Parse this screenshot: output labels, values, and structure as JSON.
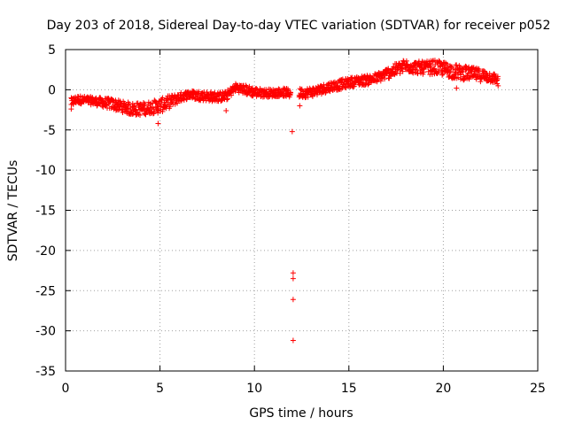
{
  "chart_data": {
    "type": "scatter",
    "title": "Day 203 of 2018, Sidereal Day-to-day VTEC variation (SDTVAR) for receiver p052",
    "xlabel": "GPS time / hours",
    "ylabel": "SDTVAR / TECUs",
    "xlim": [
      0,
      25
    ],
    "ylim": [
      -35,
      5
    ],
    "xticks": [
      0,
      5,
      10,
      15,
      20,
      25
    ],
    "yticks": [
      5,
      0,
      -5,
      -10,
      -15,
      -20,
      -25,
      -30,
      -35
    ],
    "grid": true,
    "marker": "+",
    "color": "#ff0000",
    "series": [
      {
        "name": "SDTVAR",
        "trend_x": [
          0.3,
          0.6,
          1.0,
          1.5,
          2.0,
          2.5,
          3.0,
          3.5,
          4.0,
          4.5,
          5.0,
          5.5,
          6.0,
          6.5,
          7.0,
          7.5,
          8.0,
          8.5,
          9.0,
          9.5,
          10.0,
          10.5,
          11.0,
          11.5,
          12.0,
          12.5,
          13.0,
          13.5,
          14.0,
          14.5,
          15.0,
          15.5,
          16.0,
          16.5,
          17.0,
          17.5,
          18.0,
          18.5,
          19.0,
          19.5,
          20.0,
          20.5,
          21.0,
          21.5,
          22.0,
          22.5,
          22.9
        ],
        "trend_y": [
          -1.6,
          -1.2,
          -1.3,
          -1.4,
          -1.6,
          -1.8,
          -2.1,
          -2.4,
          -2.4,
          -2.2,
          -2.0,
          -1.5,
          -1.0,
          -0.6,
          -0.7,
          -0.8,
          -0.9,
          -0.8,
          0.3,
          0.0,
          -0.3,
          -0.4,
          -0.4,
          -0.3,
          -0.5,
          -0.4,
          -0.3,
          0.0,
          0.4,
          0.6,
          0.9,
          1.1,
          1.2,
          1.5,
          2.0,
          2.5,
          3.0,
          2.8,
          2.7,
          2.8,
          2.6,
          2.3,
          2.1,
          2.0,
          1.8,
          1.6,
          1.2
        ],
        "spread_y": [
          0.6,
          0.5,
          0.5,
          0.5,
          0.6,
          0.7,
          0.7,
          0.8,
          0.8,
          0.8,
          0.9,
          0.8,
          0.6,
          0.5,
          0.6,
          0.6,
          0.6,
          0.6,
          0.5,
          0.6,
          0.6,
          0.5,
          0.5,
          0.5,
          0.6,
          0.6,
          0.6,
          0.6,
          0.6,
          0.6,
          0.6,
          0.6,
          0.6,
          0.6,
          0.7,
          0.8,
          0.8,
          0.8,
          0.8,
          0.9,
          0.9,
          0.9,
          0.9,
          0.8,
          0.8,
          0.7,
          0.6
        ],
        "outlier_points": [
          {
            "x": 0.3,
            "y": -2.4
          },
          {
            "x": 4.9,
            "y": -4.2
          },
          {
            "x": 8.5,
            "y": -2.6
          },
          {
            "x": 12.0,
            "y": -5.2
          },
          {
            "x": 12.05,
            "y": -22.8
          },
          {
            "x": 12.05,
            "y": -23.5
          },
          {
            "x": 12.05,
            "y": -26.1
          },
          {
            "x": 12.05,
            "y": -31.2
          },
          {
            "x": 12.4,
            "y": -2.0
          },
          {
            "x": 20.7,
            "y": 0.2
          },
          {
            "x": 22.9,
            "y": 0.5
          }
        ]
      }
    ]
  }
}
